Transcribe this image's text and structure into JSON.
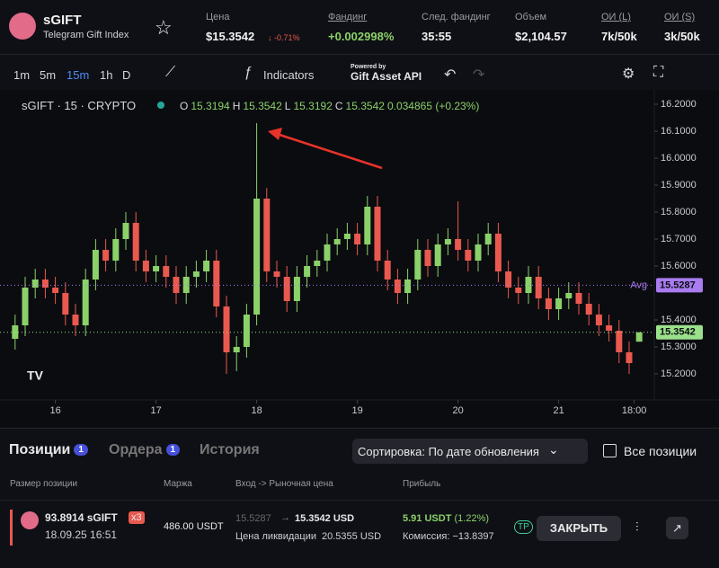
{
  "header": {
    "ticker": "sGIFT",
    "subtitle": "Telegram Gift Index",
    "stats": [
      {
        "label": "Цена",
        "value": "$15.3542",
        "change": "↓ -0.71%"
      },
      {
        "label": "Фандинг",
        "value": "+0.002998%"
      },
      {
        "label": "След. фандинг",
        "value": "35:55"
      },
      {
        "label": "Объем",
        "value": "$2,104.57"
      },
      {
        "label": "ОИ (L)",
        "value": "7k/50k"
      },
      {
        "label": "ОИ (S)",
        "value": "3k/50k"
      }
    ]
  },
  "toolbar": {
    "intervals": [
      "1m",
      "5m",
      "15m",
      "1h",
      "D"
    ],
    "indicators": "Indicators",
    "powered_by": "Powered by",
    "api": "Gift Asset API"
  },
  "chart_legend": {
    "symbol": "sGIFT · 15 · CRYPTO",
    "ohlc": [
      [
        "O",
        "15.3194"
      ],
      [
        "H",
        "15.3542"
      ],
      [
        "L",
        "15.3192"
      ],
      [
        "C",
        "15.3542"
      ]
    ],
    "change": "0.034865 (+0.23%)"
  },
  "chart_data": {
    "type": "candlestick",
    "up_color": "#8bd16a",
    "down_color": "#e9594f",
    "x": [
      15.6,
      15.7,
      15.8,
      15.9,
      16.0,
      16.1,
      16.2,
      16.3,
      16.4,
      16.5,
      16.6,
      16.7,
      16.8,
      16.9,
      17.0,
      17.1,
      17.2,
      17.3,
      17.4,
      17.5,
      17.6,
      17.7,
      17.8,
      17.9,
      18.0,
      18.1,
      18.2,
      18.3,
      18.4,
      18.5,
      18.6,
      18.7,
      18.8,
      18.9,
      19.0,
      19.1,
      19.2,
      19.3,
      19.4,
      19.5,
      19.6,
      19.7,
      19.8,
      19.9,
      20.0,
      20.1,
      20.2,
      20.3,
      20.4,
      20.5,
      20.6,
      20.7,
      20.8,
      20.9,
      21.0,
      21.1,
      21.2,
      21.3,
      21.4,
      21.5,
      21.6,
      21.7,
      21.8
    ],
    "open": [
      15.33,
      15.38,
      15.52,
      15.55,
      15.52,
      15.5,
      15.42,
      15.38,
      15.55,
      15.66,
      15.62,
      15.7,
      15.76,
      15.62,
      15.58,
      15.6,
      15.56,
      15.5,
      15.56,
      15.58,
      15.62,
      15.45,
      15.28,
      15.3,
      15.42,
      15.85,
      15.58,
      15.56,
      15.47,
      15.56,
      15.6,
      15.62,
      15.68,
      15.7,
      15.72,
      15.68,
      15.82,
      15.62,
      15.55,
      15.5,
      15.55,
      15.66,
      15.6,
      15.68,
      15.7,
      15.66,
      15.62,
      15.68,
      15.72,
      15.58,
      15.52,
      15.5,
      15.56,
      15.48,
      15.44,
      15.48,
      15.5,
      15.46,
      15.42,
      15.38,
      15.36,
      15.28,
      15.3194
    ],
    "high": [
      15.42,
      15.56,
      15.59,
      15.59,
      15.56,
      15.54,
      15.46,
      15.59,
      15.7,
      15.7,
      15.74,
      15.8,
      15.8,
      15.66,
      15.64,
      15.64,
      15.6,
      15.6,
      15.62,
      15.66,
      15.66,
      15.49,
      15.34,
      15.46,
      16.13,
      15.89,
      15.62,
      15.6,
      15.6,
      15.64,
      15.66,
      15.72,
      15.74,
      15.76,
      15.76,
      15.86,
      15.86,
      15.66,
      15.59,
      15.59,
      15.7,
      15.7,
      15.72,
      15.74,
      15.84,
      15.7,
      15.72,
      15.76,
      15.76,
      15.62,
      15.56,
      15.6,
      15.6,
      15.52,
      15.52,
      15.54,
      15.54,
      15.5,
      15.46,
      15.42,
      15.4,
      15.32,
      15.3542
    ],
    "low": [
      15.29,
      15.34,
      15.48,
      15.48,
      15.46,
      15.38,
      15.34,
      15.34,
      15.51,
      15.58,
      15.58,
      15.66,
      15.58,
      15.54,
      15.54,
      15.52,
      15.46,
      15.46,
      15.52,
      15.54,
      15.41,
      15.2,
      15.21,
      15.26,
      15.38,
      15.54,
      15.52,
      15.43,
      15.43,
      15.52,
      15.56,
      15.58,
      15.64,
      15.66,
      15.64,
      15.64,
      15.58,
      15.51,
      15.46,
      15.46,
      15.51,
      15.56,
      15.56,
      15.64,
      15.62,
      15.58,
      15.58,
      15.64,
      15.54,
      15.48,
      15.46,
      15.46,
      15.44,
      15.4,
      15.4,
      15.44,
      15.42,
      15.38,
      15.34,
      15.32,
      15.24,
      15.2,
      15.3192
    ],
    "close": [
      15.38,
      15.52,
      15.55,
      15.52,
      15.5,
      15.42,
      15.38,
      15.55,
      15.66,
      15.62,
      15.7,
      15.76,
      15.62,
      15.58,
      15.6,
      15.56,
      15.5,
      15.56,
      15.58,
      15.62,
      15.45,
      15.28,
      15.3,
      15.42,
      15.85,
      15.58,
      15.56,
      15.47,
      15.56,
      15.6,
      15.62,
      15.68,
      15.7,
      15.72,
      15.68,
      15.82,
      15.62,
      15.55,
      15.5,
      15.55,
      15.66,
      15.6,
      15.68,
      15.7,
      15.66,
      15.62,
      15.68,
      15.72,
      15.58,
      15.52,
      15.5,
      15.56,
      15.48,
      15.44,
      15.48,
      15.5,
      15.46,
      15.42,
      15.38,
      15.36,
      15.28,
      15.24,
      15.3542
    ],
    "xlim": [
      15.45,
      21.95
    ],
    "xticks": [
      16,
      17,
      18,
      19,
      20,
      21,
      {
        "value": 21.75,
        "label": "18:00"
      }
    ],
    "ylim": [
      15.12,
      16.25
    ],
    "yticks": [
      {
        "value": 16.2,
        "label": "16.2000"
      },
      {
        "value": 16.1,
        "label": "16.1000"
      },
      {
        "value": 16.0,
        "label": "16.0000"
      },
      {
        "value": 15.9,
        "label": "15.9000"
      },
      {
        "value": 15.8,
        "label": "15.8000"
      },
      {
        "value": 15.7,
        "label": "15.7000"
      },
      {
        "value": 15.6,
        "label": "15.6000"
      },
      {
        "value": 15.4,
        "label": "15.4000"
      },
      {
        "value": 15.3,
        "label": "15.3000"
      },
      {
        "value": 15.2,
        "label": "15.2000"
      }
    ],
    "price_lines": [
      {
        "name": "Avg",
        "value": 15.5287,
        "color": "#a97cf0"
      },
      {
        "value": 15.3542,
        "color": "#9be08a"
      }
    ]
  },
  "positions": {
    "tabs": [
      {
        "label": "Позиции",
        "count": "1"
      },
      {
        "label": "Ордера",
        "count": "1"
      },
      {
        "label": "История"
      }
    ],
    "sort": "Сортировка: По дате обновления",
    "all": "Все позиции",
    "columns": [
      "Размер позиции",
      "Маржа",
      "Вход -> Рыночная цена",
      "Прибыль"
    ],
    "row": {
      "size": "93.8914 sGIFT",
      "leverage": "x3",
      "date": "18.09.25 16:51",
      "margin": "486.00 USDT",
      "entry": "15.5287",
      "market": "15.3542 USD",
      "liq_label": "Цена ликвидации",
      "liq": "20.5355 USD",
      "pnl": "5.91",
      "pnl_unit": "USDT",
      "pnl_pct": "(1.22%)",
      "fee": "Комиссия: −13.8397",
      "tp": "TP",
      "close": "ЗАКРЫТЬ"
    }
  }
}
